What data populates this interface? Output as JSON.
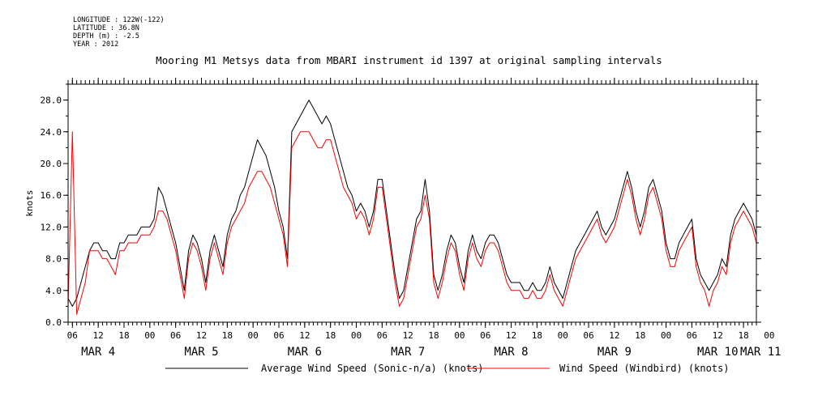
{
  "header": {
    "longitude": "LONGITUDE : 122W(-122)",
    "latitude": "LATITUDE : 36.8N",
    "depth": "DEPTH (m) : -2.5",
    "year": "YEAR : 2012"
  },
  "chart_data": {
    "type": "line",
    "title": "Mooring M1 Metsys data from MBARI instrument id 1397 at original sampling intervals",
    "ylabel": "knots",
    "ylim": [
      0,
      30
    ],
    "y_ticks": [
      "0.0",
      "4.0",
      "8.0",
      "12.0",
      "16.0",
      "20.0",
      "24.0",
      "28.0"
    ],
    "x_unit": "hours since MAR 4 00:00, 2012",
    "xlim": [
      5,
      165
    ],
    "x_hour_ticks": [
      {
        "hour": 6,
        "label": "06"
      },
      {
        "hour": 12,
        "label": "12"
      },
      {
        "hour": 18,
        "label": "18"
      },
      {
        "hour": 24,
        "label": "00"
      },
      {
        "hour": 30,
        "label": "06"
      },
      {
        "hour": 36,
        "label": "12"
      },
      {
        "hour": 42,
        "label": "18"
      },
      {
        "hour": 48,
        "label": "00"
      },
      {
        "hour": 54,
        "label": "06"
      },
      {
        "hour": 60,
        "label": "12"
      },
      {
        "hour": 66,
        "label": "18"
      },
      {
        "hour": 72,
        "label": "00"
      },
      {
        "hour": 78,
        "label": "06"
      },
      {
        "hour": 84,
        "label": "12"
      },
      {
        "hour": 90,
        "label": "18"
      },
      {
        "hour": 96,
        "label": "00"
      },
      {
        "hour": 102,
        "label": "06"
      },
      {
        "hour": 108,
        "label": "12"
      },
      {
        "hour": 114,
        "label": "18"
      },
      {
        "hour": 120,
        "label": "00"
      },
      {
        "hour": 126,
        "label": "06"
      },
      {
        "hour": 132,
        "label": "12"
      },
      {
        "hour": 138,
        "label": "18"
      },
      {
        "hour": 144,
        "label": "00"
      },
      {
        "hour": 150,
        "label": "06"
      },
      {
        "hour": 156,
        "label": "12"
      },
      {
        "hour": 162,
        "label": "18"
      },
      {
        "hour": 168,
        "label": "00"
      }
    ],
    "x_day_labels": [
      {
        "hour": 12,
        "label": "MAR  4"
      },
      {
        "hour": 36,
        "label": "MAR  5"
      },
      {
        "hour": 60,
        "label": "MAR  6"
      },
      {
        "hour": 84,
        "label": "MAR  7"
      },
      {
        "hour": 108,
        "label": "MAR  8"
      },
      {
        "hour": 132,
        "label": "MAR  9"
      },
      {
        "hour": 156,
        "label": "MAR 10"
      },
      {
        "hour": 166,
        "label": "MAR 11"
      }
    ],
    "legend_placement": "bottom",
    "series": [
      {
        "name": "Average Wind Speed (Sonic-n/a) (knots)",
        "color": "#000000",
        "x": [
          5,
          6,
          7,
          8,
          9,
          10,
          11,
          12,
          13,
          14,
          15,
          16,
          17,
          18,
          19,
          20,
          21,
          22,
          23,
          24,
          25,
          26,
          27,
          28,
          29,
          30,
          31,
          32,
          33,
          34,
          35,
          36,
          37,
          38,
          39,
          40,
          41,
          42,
          43,
          44,
          45,
          46,
          47,
          48,
          49,
          50,
          51,
          52,
          53,
          54,
          55,
          56,
          57,
          58,
          59,
          60,
          61,
          62,
          63,
          64,
          65,
          66,
          67,
          68,
          69,
          70,
          71,
          72,
          73,
          74,
          75,
          76,
          77,
          78,
          79,
          80,
          81,
          82,
          83,
          84,
          85,
          86,
          87,
          88,
          89,
          90,
          91,
          92,
          93,
          94,
          95,
          96,
          97,
          98,
          99,
          100,
          101,
          102,
          103,
          104,
          105,
          106,
          107,
          108,
          109,
          110,
          111,
          112,
          113,
          114,
          115,
          116,
          117,
          118,
          119,
          120,
          121,
          122,
          123,
          124,
          125,
          126,
          127,
          128,
          129,
          130,
          131,
          132,
          133,
          134,
          135,
          136,
          137,
          138,
          139,
          140,
          141,
          142,
          143,
          144,
          145,
          146,
          147,
          148,
          149,
          150,
          151,
          152,
          153,
          154,
          155,
          156,
          157,
          158,
          159,
          160,
          161,
          162,
          163,
          164,
          165
        ],
        "y": [
          3,
          2,
          3,
          5,
          7,
          9,
          10,
          10,
          9,
          9,
          8,
          8,
          10,
          10,
          11,
          11,
          11,
          12,
          12,
          12,
          13,
          17,
          16,
          14,
          12,
          10,
          7,
          4,
          9,
          11,
          10,
          8,
          5,
          9,
          11,
          9,
          7,
          11,
          13,
          14,
          16,
          17,
          19,
          21,
          23,
          22,
          21,
          19,
          17,
          14,
          12,
          8,
          24,
          25,
          26,
          27,
          28,
          27,
          26,
          25,
          26,
          25,
          23,
          21,
          19,
          17,
          16,
          14,
          15,
          14,
          12,
          14,
          18,
          18,
          14,
          10,
          6,
          3,
          4,
          7,
          10,
          13,
          14,
          18,
          14,
          6,
          4,
          6,
          9,
          11,
          10,
          7,
          5,
          9,
          11,
          9,
          8,
          10,
          11,
          11,
          10,
          8,
          6,
          5,
          5,
          5,
          4,
          4,
          5,
          4,
          4,
          5,
          7,
          5,
          4,
          3,
          5,
          7,
          9,
          10,
          11,
          12,
          13,
          14,
          12,
          11,
          12,
          13,
          15,
          17,
          19,
          17,
          14,
          12,
          14,
          17,
          18,
          16,
          14,
          10,
          8,
          8,
          10,
          11,
          12,
          13,
          8,
          6,
          5,
          4,
          5,
          6,
          8,
          7,
          11,
          13,
          14,
          15,
          14,
          13,
          11
        ],
        "extra": {
          "peak_range": "hours 50-62 up to ~29"
        }
      },
      {
        "name": "Wind Speed (Windbird) (knots)",
        "color": "#ff0000",
        "x": [
          5,
          6,
          7,
          8,
          9,
          10,
          11,
          12,
          13,
          14,
          15,
          16,
          17,
          18,
          19,
          20,
          21,
          22,
          23,
          24,
          25,
          26,
          27,
          28,
          29,
          30,
          31,
          32,
          33,
          34,
          35,
          36,
          37,
          38,
          39,
          40,
          41,
          42,
          43,
          44,
          45,
          46,
          47,
          48,
          49,
          50,
          51,
          52,
          53,
          54,
          55,
          56,
          57,
          58,
          59,
          60,
          61,
          62,
          63,
          64,
          65,
          66,
          67,
          68,
          69,
          70,
          71,
          72,
          73,
          74,
          75,
          76,
          77,
          78,
          79,
          80,
          81,
          82,
          83,
          84,
          85,
          86,
          87,
          88,
          89,
          90,
          91,
          92,
          93,
          94,
          95,
          96,
          97,
          98,
          99,
          100,
          101,
          102,
          103,
          104,
          105,
          106,
          107,
          108,
          109,
          110,
          111,
          112,
          113,
          114,
          115,
          116,
          117,
          118,
          119,
          120,
          121,
          122,
          123,
          124,
          125,
          126,
          127,
          128,
          129,
          130,
          131,
          132,
          133,
          134,
          135,
          136,
          137,
          138,
          139,
          140,
          141,
          142,
          143,
          144,
          145,
          146,
          147,
          148,
          149,
          150,
          151,
          152,
          153,
          154,
          155,
          156,
          157,
          158,
          159,
          160,
          161,
          162,
          163,
          164,
          165
        ],
        "y": [
          2,
          24,
          1,
          3,
          5,
          9,
          9,
          9,
          8,
          8,
          7,
          6,
          9,
          9,
          10,
          10,
          10,
          11,
          11,
          11,
          12,
          14,
          14,
          13,
          11,
          9,
          6,
          3,
          8,
          10,
          9,
          7,
          4,
          8,
          10,
          8,
          6,
          10,
          12,
          13,
          14,
          15,
          17,
          18,
          19,
          19,
          18,
          17,
          15,
          13,
          11,
          7,
          22,
          23,
          24,
          24,
          24,
          23,
          22,
          22,
          23,
          23,
          21,
          19,
          17,
          16,
          15,
          13,
          14,
          13,
          11,
          13,
          17,
          17,
          13,
          9,
          5,
          2,
          3,
          6,
          9,
          12,
          13,
          16,
          13,
          5,
          3,
          5,
          8,
          10,
          9,
          6,
          4,
          8,
          10,
          8,
          7,
          9,
          10,
          10,
          9,
          7,
          5,
          4,
          4,
          4,
          3,
          3,
          4,
          3,
          3,
          4,
          6,
          4,
          3,
          2,
          4,
          6,
          8,
          9,
          10,
          11,
          12,
          13,
          11,
          10,
          11,
          12,
          14,
          16,
          18,
          16,
          13,
          11,
          13,
          16,
          17,
          15,
          13,
          9,
          7,
          7,
          9,
          10,
          11,
          12,
          7,
          5,
          4,
          2,
          4,
          5,
          7,
          6,
          10,
          12,
          13,
          14,
          13,
          12,
          10
        ]
      }
    ]
  }
}
